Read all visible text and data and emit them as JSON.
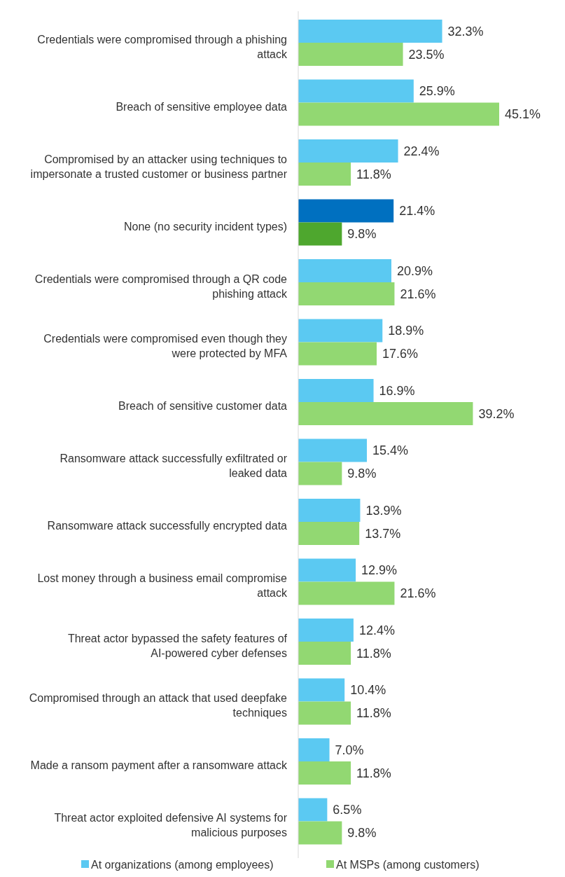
{
  "chart_data": {
    "type": "bar",
    "orientation": "horizontal",
    "legend": "bottom",
    "categories": [
      "Credentials were compromised through a phishing attack",
      "Breach of sensitive employee data",
      "Compromised by an attacker using techniques to impersonate a trusted customer or business partner",
      "None (no security incident types)",
      "Credentials were compromised through a QR code phishing attack",
      "Credentials were compromised even though they were protected by MFA",
      "Breach of sensitive customer data",
      "Ransomware attack successfully exfiltrated or leaked data",
      "Ransomware attack successfully encrypted data",
      "Lost money through a business email compromise attack",
      "Threat actor bypassed the safety features of AI-powered cyber defenses",
      "Compromised through an attack that used deepfake techniques",
      "Made a ransom payment after a ransomware attack",
      "Threat actor exploited defensive AI systems for malicious purposes"
    ],
    "series": [
      {
        "name": "At  organizations (among employees)",
        "color": "#5bc9f2",
        "colors": [
          "#5bc9f2",
          "#5bc9f2",
          "#5bc9f2",
          "#0070c0",
          "#5bc9f2",
          "#5bc9f2",
          "#5bc9f2",
          "#5bc9f2",
          "#5bc9f2",
          "#5bc9f2",
          "#5bc9f2",
          "#5bc9f2",
          "#5bc9f2",
          "#5bc9f2"
        ],
        "values": [
          32.3,
          25.9,
          22.4,
          21.4,
          20.9,
          18.9,
          16.9,
          15.4,
          13.9,
          12.9,
          12.4,
          10.4,
          7.0,
          6.5
        ],
        "value_labels": [
          "32.3%",
          "25.9%",
          "22.4%",
          "21.4%",
          "20.9%",
          "18.9%",
          "16.9%",
          "15.4%",
          "13.9%",
          "12.9%",
          "12.4%",
          "10.4%",
          "7.0%",
          "6.5%"
        ]
      },
      {
        "name": "At MSPs (among customers)",
        "color": "#92d872",
        "colors": [
          "#92d872",
          "#92d872",
          "#92d872",
          "#4ea72e",
          "#92d872",
          "#92d872",
          "#92d872",
          "#92d872",
          "#92d872",
          "#92d872",
          "#92d872",
          "#92d872",
          "#92d872",
          "#92d872"
        ],
        "values": [
          23.5,
          45.1,
          11.8,
          9.8,
          21.6,
          17.6,
          39.2,
          9.8,
          13.7,
          21.6,
          11.8,
          11.8,
          11.8,
          9.8
        ],
        "value_labels": [
          "23.5%",
          "45.1%",
          "11.8%",
          "9.8%",
          "21.6%",
          "17.6%",
          "39.2%",
          "9.8%",
          "13.7%",
          "21.6%",
          "11.8%",
          "11.8%",
          "11.8%",
          "9.8%"
        ]
      }
    ]
  }
}
